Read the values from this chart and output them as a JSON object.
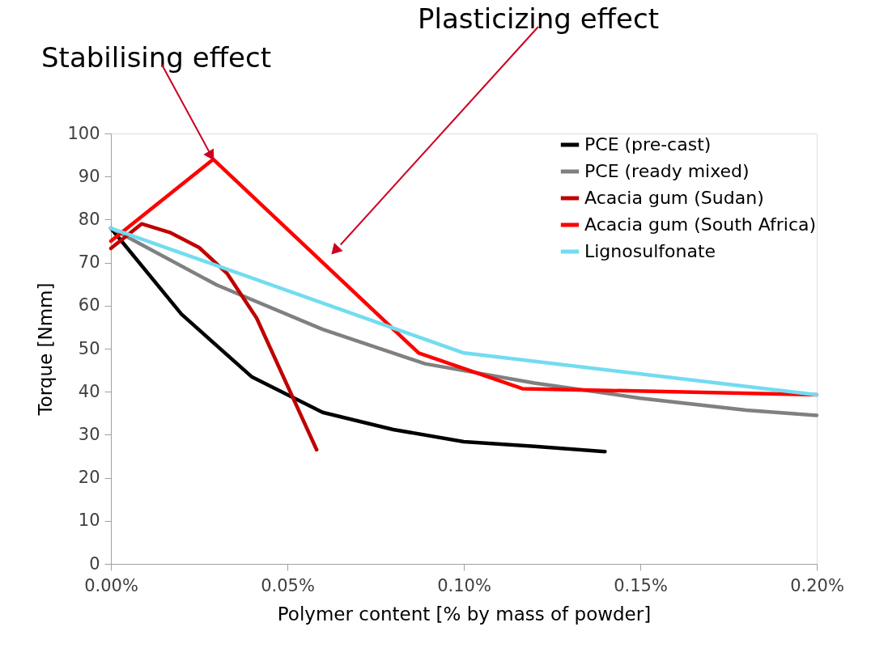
{
  "chart_data": {
    "type": "line",
    "xlabel": "Polymer content [% by mass of powder]",
    "ylabel": "Torque [Nmm]",
    "xlim": [
      0,
      0.2
    ],
    "xticks": [
      {
        "value": 0,
        "label": "0.00%"
      },
      {
        "value": 0.05,
        "label": "0.05%"
      },
      {
        "value": 0.1,
        "label": "0.10%"
      },
      {
        "value": 0.15,
        "label": "0.15%"
      },
      {
        "value": 0.2,
        "label": "0.20%"
      }
    ],
    "ylim": [
      0,
      100
    ],
    "yticks": [
      0,
      10,
      20,
      30,
      40,
      50,
      60,
      70,
      80,
      90,
      100
    ],
    "grid": false,
    "legend": "top right",
    "line_style": "solid",
    "marker": "none",
    "series": [
      {
        "name": "PCE (pre-cast)",
        "color": "#000000",
        "x": [
          0,
          0.02,
          0.04,
          0.06,
          0.08,
          0.1,
          0.12,
          0.14
        ],
        "values": [
          78,
          58,
          43.4,
          35.2,
          31.2,
          28.4,
          27.3,
          26.1
        ]
      },
      {
        "name": "PCE (ready mixed)",
        "color": "#808080",
        "x": [
          0,
          0.03,
          0.06,
          0.089,
          0.12,
          0.15,
          0.18,
          0.2
        ],
        "values": [
          78,
          64.8,
          54.5,
          46.5,
          42,
          38.5,
          35.7,
          34.5
        ]
      },
      {
        "name": "Acacia gum (Sudan)",
        "color": "#c00000",
        "x": [
          0,
          0.0087,
          0.0167,
          0.025,
          0.033,
          0.0413,
          0.0583
        ],
        "values": [
          73.3,
          79,
          77,
          73.5,
          67.4,
          57.1,
          26.5
        ]
      },
      {
        "name": "Acacia gum (South Africa)",
        "color": "#ff0000",
        "x": [
          0,
          0.029,
          0.0872,
          0.1166,
          0.2
        ],
        "values": [
          75,
          94,
          49,
          40.7,
          39.3
        ]
      },
      {
        "name": "Lignosulfonate",
        "color": "#72dcf0",
        "x": [
          0,
          0.1,
          0.2
        ],
        "values": [
          78,
          49,
          39.3
        ]
      }
    ],
    "annotations": [
      {
        "text": "Stabilising effect",
        "x": 0.029,
        "y": 94
      },
      "Plasticizing effect"
    ]
  }
}
